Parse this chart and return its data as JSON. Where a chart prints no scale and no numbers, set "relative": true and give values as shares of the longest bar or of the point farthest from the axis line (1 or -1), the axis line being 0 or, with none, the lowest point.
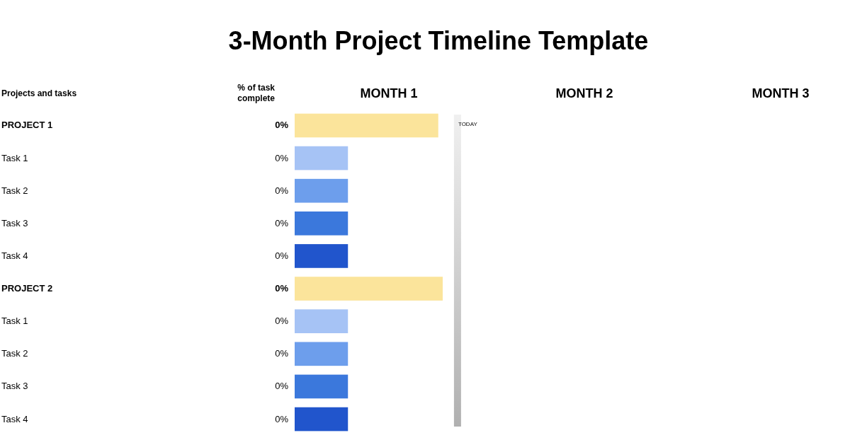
{
  "chart_data": {
    "type": "bar",
    "orientation": "horizontal",
    "relative": true,
    "title": "3-Month Project Timeline Template",
    "ylabel": "Projects and tasks",
    "y2label": "% of task complete",
    "categories": [
      "PROJECT 1",
      "Task 1",
      "Task 2",
      "Task 3",
      "Task 4",
      "PROJECT 2",
      "Task 1",
      "Task 2",
      "Task 3",
      "Task 4"
    ],
    "series": [
      {
        "color": "#fbe49b",
        "values": [
          0.97,
          null,
          null,
          null,
          null,
          1,
          null,
          null,
          null,
          null
        ]
      },
      {
        "colors": [
          null,
          "#a6c3f5",
          "#6d9eec",
          "#3b78dc",
          "#2155cc",
          null,
          "#a6c3f5",
          "#6d9eec",
          "#3b78dc",
          "#2155cc"
        ],
        "values": [
          null,
          0.36,
          0.36,
          0.36,
          0.36,
          null,
          0.36,
          0.36,
          0.36,
          0.36
        ]
      }
    ],
    "annotations": [
      "0%",
      "0%",
      "0%",
      "0%",
      "0%",
      "0%",
      "0%",
      "0%",
      "0%",
      "0%",
      "MONTH 1",
      "MONTH 2",
      "MONTH 3"
    ],
    "ref_lines": [
      {
        "axis": "x",
        "value": 1.1,
        "label": "TODAY",
        "color": "#b0b0b0"
      }
    ]
  }
}
